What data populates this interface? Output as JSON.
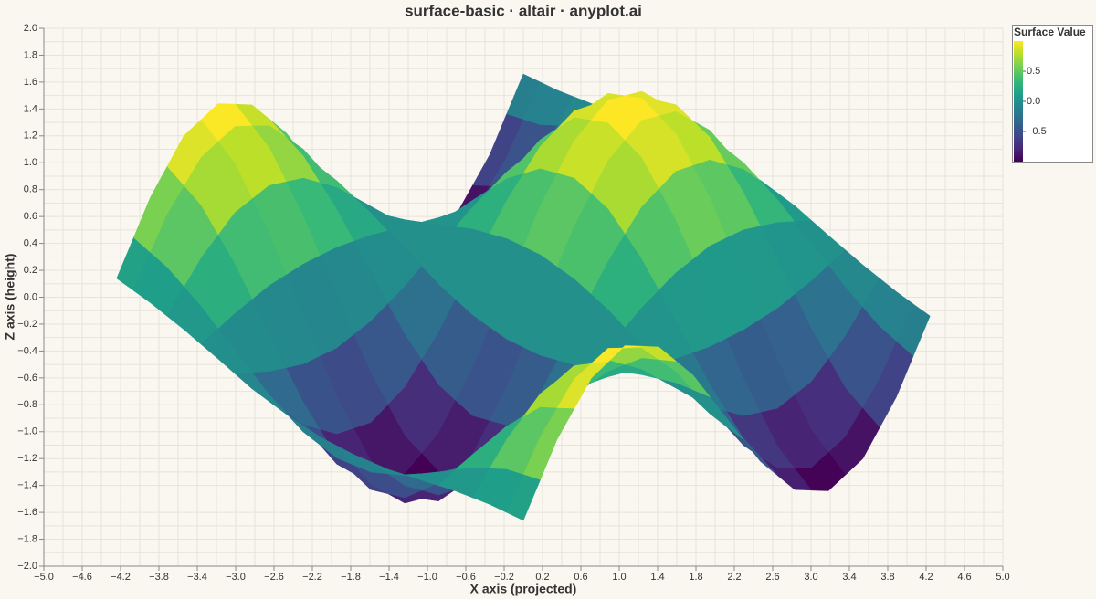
{
  "chart_data": {
    "type": "surface",
    "title": "surface-basic · altair · anyplot.ai",
    "x_label": "X axis (projected)",
    "y_label": "Z axis (height)",
    "legend_title": "Surface Value",
    "colorscale": [
      "#440154",
      "#482878",
      "#3e4989",
      "#31688e",
      "#26828e",
      "#1f9e89",
      "#35b779",
      "#6ece58",
      "#b5de2b",
      "#fde725"
    ],
    "colorlim": [
      -1,
      1
    ],
    "colorticks": [
      0.5,
      {
        "value": 0,
        "label": "0.0"
      },
      {
        "value": -0.5,
        "label": "−0.5"
      }
    ],
    "xlim": [
      -5,
      5
    ],
    "ylim": [
      -2,
      2
    ],
    "grid": true,
    "xticks": [
      {
        "value": -5,
        "label": "−5.0"
      },
      {
        "value": -4.6,
        "label": "−4.6"
      },
      {
        "value": -4.2,
        "label": "−4.2"
      },
      {
        "value": -3.8,
        "label": "−3.8"
      },
      {
        "value": -3.4,
        "label": "−3.4"
      },
      {
        "value": -3,
        "label": "−3.0"
      },
      {
        "value": -2.6,
        "label": "−2.6"
      },
      {
        "value": -2.2,
        "label": "−2.2"
      },
      {
        "value": -1.8,
        "label": "−1.8"
      },
      {
        "value": -1.4,
        "label": "−1.4"
      },
      {
        "value": -1,
        "label": "−1.0"
      },
      {
        "value": -0.6,
        "label": "−0.6"
      },
      {
        "value": -0.2,
        "label": "−0.2"
      },
      0.2,
      0.6,
      {
        "value": 1,
        "label": "1.0"
      },
      1.4,
      1.8,
      2.2,
      2.6,
      {
        "value": 3,
        "label": "3.0"
      },
      3.4,
      3.8,
      4.2,
      4.6,
      {
        "value": 5,
        "label": "5.0"
      }
    ],
    "yticks": [
      {
        "value": 2,
        "label": "2.0"
      },
      1.8,
      1.6,
      1.4,
      1.2,
      {
        "value": 1,
        "label": "1.0"
      },
      0.8,
      0.6,
      0.4,
      0.2,
      {
        "value": 0,
        "label": "0.0"
      },
      {
        "value": -0.2,
        "label": "−0.2"
      },
      {
        "value": -0.4,
        "label": "−0.4"
      },
      {
        "value": -0.6,
        "label": "−0.6"
      },
      {
        "value": -0.8,
        "label": "−0.8"
      },
      {
        "value": -1,
        "label": "−1.0"
      },
      {
        "value": -1.2,
        "label": "−1.2"
      },
      {
        "value": -1.4,
        "label": "−1.4"
      },
      {
        "value": -1.6,
        "label": "−1.6"
      },
      {
        "value": -1.8,
        "label": "−1.8"
      },
      {
        "value": -2,
        "label": "−2.0"
      }
    ],
    "x": [
      0,
      -0.35,
      -0.71,
      -1.06,
      -1.41,
      -1.77,
      -2.12,
      -2.47,
      -2.83,
      -3.18,
      -3.54,
      -3.89,
      -4.24,
      0.35,
      0,
      -0.35,
      -0.71,
      -1.06,
      -1.41,
      -1.77,
      -2.12,
      -2.47,
      -2.83,
      -3.18,
      -3.54,
      -3.89,
      0.71,
      0.35,
      0,
      -0.35,
      -0.71,
      -1.06,
      -1.41,
      -1.77,
      -2.12,
      -2.47,
      -2.83,
      -3.18,
      -3.54,
      1.06,
      0.71,
      0.35,
      0,
      -0.35,
      -0.71,
      -1.06,
      -1.41,
      -1.77,
      -2.12,
      -2.47,
      -2.83,
      -3.18,
      1.41,
      1.06,
      0.71,
      0.35,
      0,
      -0.35,
      -0.71,
      -1.06,
      -1.41,
      -1.77,
      -2.12,
      -2.47,
      -2.83,
      1.77,
      1.41,
      1.06,
      0.71,
      0.35,
      0,
      -0.35,
      -0.71,
      -1.06,
      -1.41,
      -1.77,
      -2.12,
      -2.47,
      2.12,
      1.77,
      1.41,
      1.06,
      0.71,
      0.35,
      0,
      -0.35,
      -0.71,
      -1.06,
      -1.41,
      -1.77,
      -2.12,
      2.47,
      2.12,
      1.77,
      1.41,
      1.06,
      0.71,
      0.35,
      0,
      -0.35,
      -0.71,
      -1.06,
      -1.41,
      -1.77,
      2.83,
      2.47,
      2.12,
      1.77,
      1.41,
      1.06,
      0.71,
      0.35,
      0,
      -0.35,
      -0.71,
      -1.06,
      -1.41,
      3.18,
      2.83,
      2.47,
      2.12,
      1.77,
      1.41,
      1.06,
      0.71,
      0.35,
      0,
      -0.35,
      -0.71,
      -1.06,
      3.54,
      3.18,
      2.83,
      2.47,
      2.12,
      1.77,
      1.41,
      1.06,
      0.71,
      0.35,
      0,
      -0.35,
      -0.71,
      3.89,
      3.54,
      3.18,
      2.83,
      2.47,
      2.12,
      1.77,
      1.41,
      1.06,
      0.71,
      0.35,
      0,
      -0.35,
      4.24,
      3.89,
      3.54,
      3.18,
      2.83,
      2.47,
      2.12,
      1.77,
      1.41,
      1.06,
      0.71,
      0.35,
      0
    ],
    "y": [
      -1.66,
      -1.54,
      -1.44,
      -1.36,
      -1.28,
      -1.17,
      -1.04,
      -0.87,
      -0.68,
      -0.46,
      -0.24,
      -0.04,
      0.14,
      -1.06,
      -1.02,
      -1.1,
      -1.24,
      -1.37,
      -1.43,
      -1.35,
      -1.13,
      -0.77,
      -0.34,
      0.1,
      0.48,
      0.74,
      -0.6,
      -0.62,
      -0.82,
      -1.11,
      -1.39,
      -1.55,
      -1.51,
      -1.25,
      -0.79,
      -0.21,
      0.38,
      0.88,
      1.2,
      -0.36,
      -0.4,
      -0.64,
      -0.97,
      -1.29,
      -1.48,
      -1.45,
      -1.18,
      -0.69,
      -0.07,
      0.56,
      1.1,
      1.44,
      -0.37,
      -0.38,
      -0.55,
      -0.81,
      -1.05,
      -1.19,
      -1.14,
      -0.89,
      -0.45,
      0.09,
      0.65,
      1.12,
      1.43,
      -0.58,
      -0.52,
      -0.55,
      -0.63,
      -0.71,
      -0.72,
      -0.63,
      -0.42,
      -0.11,
      0.27,
      0.65,
      0.98,
      1.22,
      -0.9,
      -0.75,
      -0.6,
      -0.45,
      -0.3,
      -0.15,
      0,
      0.15,
      0.3,
      0.45,
      0.6,
      0.75,
      0.9,
      -1.22,
      -0.98,
      -0.65,
      -0.27,
      0.11,
      0.42,
      0.63,
      0.72,
      0.71,
      0.63,
      0.55,
      0.52,
      0.58,
      -1.43,
      -1.12,
      -0.65,
      -0.09,
      0.45,
      0.89,
      1.14,
      1.19,
      1.05,
      0.81,
      0.55,
      0.38,
      0.37,
      -1.44,
      -1.1,
      -0.56,
      0.07,
      0.69,
      1.18,
      1.45,
      1.48,
      1.29,
      0.97,
      0.64,
      0.4,
      0.36,
      -1.2,
      -0.88,
      -0.38,
      0.21,
      0.79,
      1.25,
      1.51,
      1.55,
      1.39,
      1.11,
      0.82,
      0.62,
      0.6,
      -0.74,
      -0.48,
      -0.1,
      0.34,
      0.77,
      1.13,
      1.35,
      1.43,
      1.37,
      1.24,
      1.1,
      1.02,
      1.06,
      -0.14,
      0.04,
      0.24,
      0.46,
      0.68,
      0.87,
      1.04,
      1.17,
      1.28,
      1.36,
      1.44,
      1.54,
      1.66
    ],
    "values": [
      0.14,
      0.11,
      0.06,
      -0.01,
      -0.08,
      -0.12,
      -0.14,
      -0.12,
      -0.08,
      -0.01,
      0.06,
      0.11,
      0.14,
      0.59,
      0.48,
      0.25,
      -0.04,
      -0.32,
      -0.53,
      -0.6,
      -0.53,
      -0.32,
      -0.04,
      0.25,
      0.48,
      0.59,
      0.9,
      0.73,
      0.38,
      -0.06,
      -0.49,
      -0.8,
      -0.91,
      -0.8,
      -0.49,
      -0.06,
      0.38,
      0.73,
      0.9,
      0.99,
      0.8,
      0.41,
      -0.07,
      -0.54,
      -0.88,
      -1,
      -0.88,
      -0.54,
      -0.07,
      0.41,
      0.8,
      0.99,
      0.83,
      0.67,
      0.35,
      -0.06,
      -0.45,
      -0.74,
      -0.84,
      -0.74,
      -0.45,
      -0.06,
      0.35,
      0.67,
      0.83,
      0.47,
      0.38,
      0.2,
      -0.03,
      -0.26,
      -0.42,
      -0.48,
      -0.42,
      -0.26,
      -0.03,
      0.2,
      0.38,
      0.47,
      0,
      0,
      0,
      0,
      0,
      0,
      0,
      0,
      0,
      0,
      0,
      0,
      0,
      -0.47,
      -0.38,
      -0.2,
      0.03,
      0.26,
      0.42,
      0.48,
      0.42,
      0.26,
      0.03,
      -0.2,
      -0.38,
      -0.47,
      -0.83,
      -0.67,
      -0.35,
      0.06,
      0.45,
      0.74,
      0.84,
      0.74,
      0.45,
      0.06,
      -0.35,
      -0.67,
      -0.83,
      -0.99,
      -0.8,
      -0.41,
      0.07,
      0.54,
      0.88,
      1,
      0.88,
      0.54,
      0.07,
      -0.41,
      -0.8,
      -0.99,
      -0.9,
      -0.73,
      -0.38,
      0.06,
      0.49,
      0.8,
      0.91,
      0.8,
      0.49,
      0.06,
      -0.38,
      -0.73,
      -0.9,
      -0.59,
      -0.48,
      -0.25,
      0.04,
      0.32,
      0.53,
      0.6,
      0.53,
      0.32,
      0.04,
      -0.25,
      -0.48,
      -0.59,
      -0.14,
      -0.11,
      -0.06,
      0.01,
      0.08,
      0.12,
      0.14,
      0.12,
      0.08,
      0.01,
      -0.06,
      -0.11,
      -0.14
    ]
  }
}
